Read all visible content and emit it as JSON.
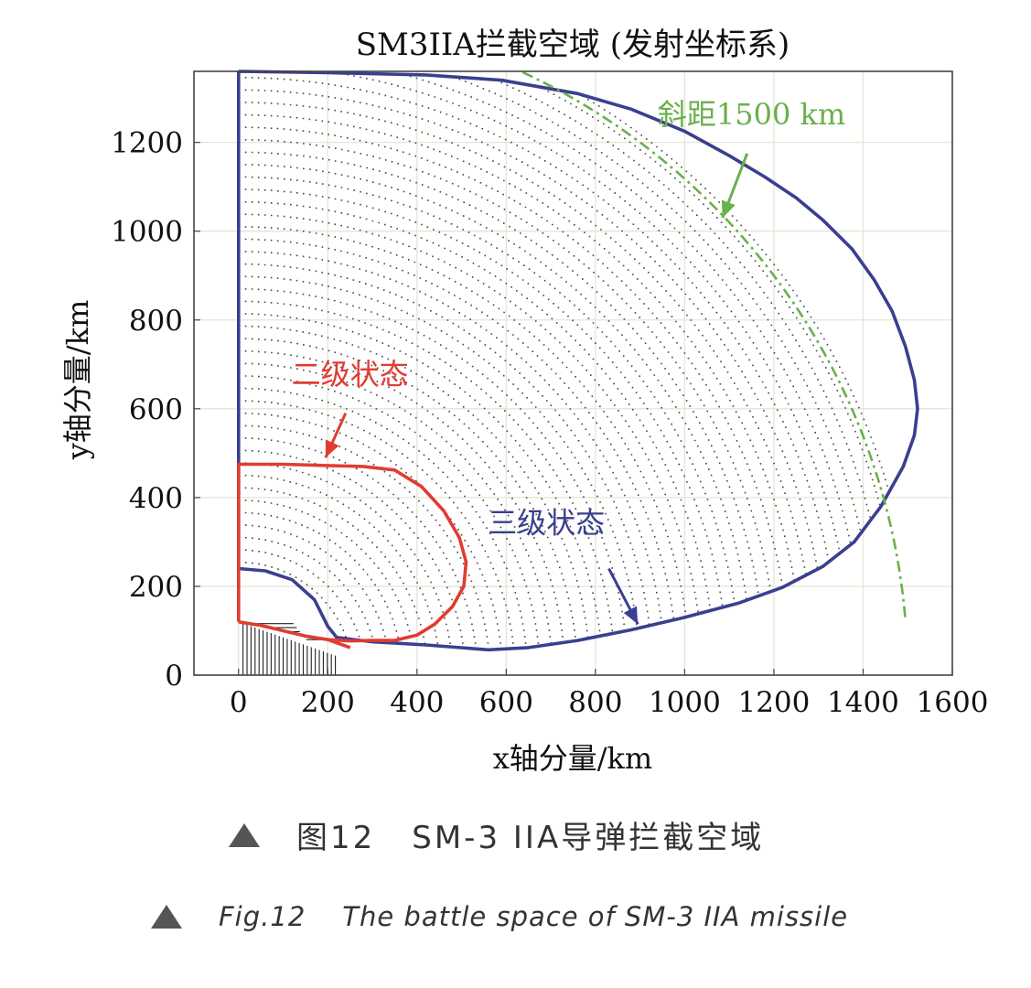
{
  "chart_data": {
    "type": "area",
    "title": "SM3IIA拦截空域 (发射坐标系)",
    "xlabel": "x轴分量/km",
    "ylabel": "y轴分量/km",
    "xlim": [
      -100,
      1600
    ],
    "ylim": [
      0,
      1360
    ],
    "xticks": [
      0,
      200,
      400,
      600,
      800,
      1000,
      1200,
      1400,
      1600
    ],
    "yticks": [
      0,
      200,
      400,
      600,
      800,
      1000,
      1200
    ],
    "grid": true,
    "series": [
      {
        "name": "三级状态",
        "color": "#3a3f8f",
        "outline": [
          [
            0,
            1360
          ],
          [
            0,
            240
          ],
          [
            60,
            235
          ],
          [
            120,
            215
          ],
          [
            170,
            170
          ],
          [
            200,
            110
          ],
          [
            220,
            85
          ],
          [
            300,
            75
          ],
          [
            420,
            68
          ],
          [
            560,
            57
          ],
          [
            650,
            62
          ],
          [
            760,
            78
          ],
          [
            880,
            102
          ],
          [
            1000,
            130
          ],
          [
            1120,
            162
          ],
          [
            1220,
            198
          ],
          [
            1310,
            245
          ],
          [
            1380,
            300
          ],
          [
            1440,
            380
          ],
          [
            1490,
            470
          ],
          [
            1515,
            540
          ],
          [
            1522,
            600
          ],
          [
            1515,
            665
          ],
          [
            1495,
            740
          ],
          [
            1465,
            820
          ],
          [
            1425,
            890
          ],
          [
            1375,
            960
          ],
          [
            1310,
            1025
          ],
          [
            1250,
            1075
          ],
          [
            1180,
            1122
          ],
          [
            1100,
            1170
          ],
          [
            1000,
            1225
          ],
          [
            880,
            1275
          ],
          [
            760,
            1310
          ],
          [
            590,
            1340
          ],
          [
            420,
            1352
          ],
          [
            200,
            1357
          ],
          [
            0,
            1360
          ]
        ]
      },
      {
        "name": "二级状态",
        "color": "#e03c31",
        "outline": [
          [
            0,
            120
          ],
          [
            0,
            475
          ],
          [
            100,
            475
          ],
          [
            200,
            472
          ],
          [
            280,
            470
          ],
          [
            350,
            462
          ],
          [
            410,
            425
          ],
          [
            460,
            370
          ],
          [
            495,
            310
          ],
          [
            510,
            255
          ],
          [
            505,
            200
          ],
          [
            480,
            155
          ],
          [
            440,
            115
          ],
          [
            400,
            90
          ],
          [
            350,
            78
          ],
          [
            300,
            78
          ],
          [
            250,
            77
          ],
          [
            200,
            80
          ],
          [
            150,
            88
          ],
          [
            100,
            100
          ],
          [
            50,
            112
          ],
          [
            0,
            120
          ]
        ],
        "tail": [
          [
            200,
            80
          ],
          [
            250,
            62
          ]
        ]
      },
      {
        "name": "斜距1500 km",
        "color": "#6ab04c",
        "radius": 1500,
        "angle_range_deg": [
          5,
          65
        ]
      }
    ],
    "annotations": [
      {
        "text": "斜距1500 km",
        "color": "#6ab04c",
        "text_at": [
          1150,
          1240
        ],
        "arrow_from": [
          1140,
          1175
        ],
        "arrow_to": [
          1085,
          1030
        ]
      },
      {
        "text": "二级状态",
        "color": "#e03c31",
        "text_at": [
          250,
          655
        ],
        "arrow_from": [
          240,
          590
        ],
        "arrow_to": [
          195,
          490
        ]
      },
      {
        "text": "三级状态",
        "color": "#3a3f8f",
        "text_at": [
          690,
          320
        ],
        "arrow_from": [
          830,
          240
        ],
        "arrow_to": [
          895,
          115
        ]
      }
    ]
  },
  "captions": {
    "cn_text": "SM-3 IIA导弹拦截空域",
    "cn_number": "图12",
    "en_text": "The battle space of SM-3 IIA missile",
    "en_number": "Fig.12"
  }
}
